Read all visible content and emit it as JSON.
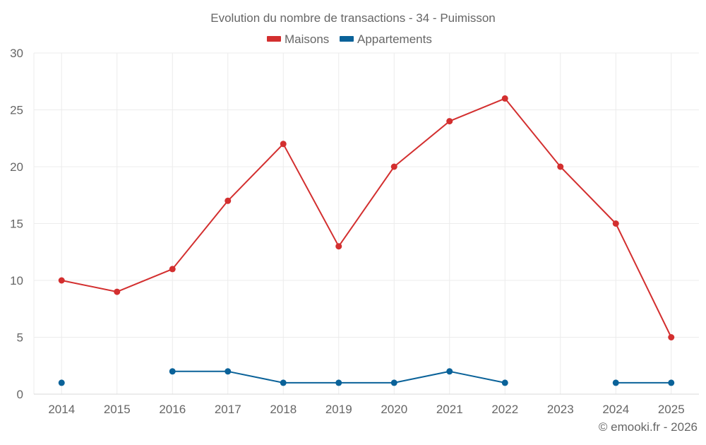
{
  "chart_data": {
    "type": "line",
    "title": "Evolution du nombre de transactions - 34 - Puimisson",
    "xlabel": "",
    "ylabel": "",
    "categories": [
      "2014",
      "2015",
      "2016",
      "2017",
      "2018",
      "2019",
      "2020",
      "2021",
      "2022",
      "2023",
      "2024",
      "2025"
    ],
    "ylim": [
      0,
      30
    ],
    "yticks": [
      0,
      5,
      10,
      15,
      20,
      25,
      30
    ],
    "grid": true,
    "legend_position": "top-center",
    "series": [
      {
        "name": "Maisons",
        "color": "#d32f2f",
        "values": [
          10,
          9,
          11,
          17,
          22,
          13,
          20,
          24,
          26,
          20,
          15,
          5
        ]
      },
      {
        "name": "Appartements",
        "color": "#0a6299",
        "values": [
          1,
          null,
          2,
          2,
          1,
          1,
          1,
          2,
          1,
          null,
          1,
          1
        ]
      }
    ]
  },
  "credit": "© emooki.fr - 2026",
  "colors": {
    "text": "#666666",
    "grid": "#ececec",
    "axis": "#d9d9d9"
  }
}
